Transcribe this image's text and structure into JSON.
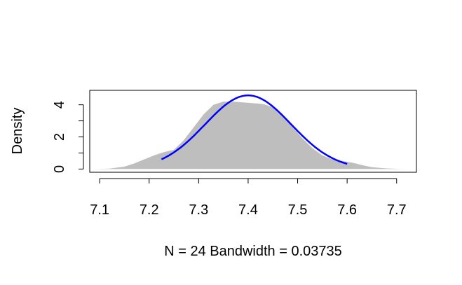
{
  "chart_data": {
    "type": "area",
    "title": "",
    "xlabel": "N = 24   Bandwidth = 0.03735",
    "ylabel": "Density",
    "xlim": [
      7.08,
      7.74
    ],
    "ylim": [
      -0.2,
      4.9
    ],
    "x_ticks": [
      7.1,
      7.2,
      7.3,
      7.4,
      7.5,
      7.6,
      7.7
    ],
    "x_tick_labels": [
      "7.1",
      "7.2",
      "7.3",
      "7.4",
      "7.5",
      "7.6",
      "7.7"
    ],
    "y_ticks": [
      0,
      1,
      2,
      3,
      4
    ],
    "y_tick_labels": [
      "0",
      "",
      "2",
      "",
      "4"
    ],
    "grid": false,
    "series": [
      {
        "kind": "filled-density",
        "color": "#bebebe",
        "x": [
          7.09,
          7.12,
          7.15,
          7.17,
          7.19,
          7.21,
          7.23,
          7.25,
          7.27,
          7.29,
          7.31,
          7.33,
          7.35,
          7.37,
          7.39,
          7.41,
          7.43,
          7.45,
          7.47,
          7.49,
          7.51,
          7.53,
          7.55,
          7.57,
          7.59,
          7.61,
          7.63,
          7.65,
          7.68,
          7.71,
          7.73
        ],
        "y": [
          0.0,
          0.03,
          0.15,
          0.35,
          0.6,
          0.85,
          1.05,
          1.2,
          1.8,
          2.6,
          3.4,
          4.0,
          4.2,
          4.2,
          4.15,
          4.1,
          4.05,
          3.85,
          3.3,
          2.6,
          1.9,
          1.3,
          0.85,
          0.6,
          0.5,
          0.4,
          0.25,
          0.12,
          0.04,
          0.01,
          0.0
        ]
      },
      {
        "kind": "normal-curve",
        "color": "#0000ff",
        "mean": 7.4,
        "sd": 0.087,
        "x_range": [
          7.225,
          7.6
        ]
      }
    ]
  }
}
